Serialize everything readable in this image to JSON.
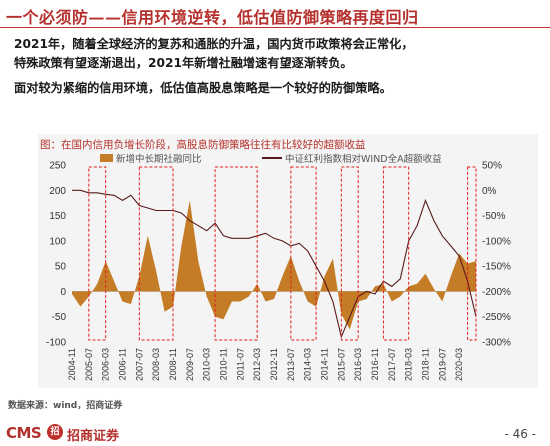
{
  "header": {
    "title": "一个必须防——信用环境逆转，低估值防御策略再度回归",
    "paragraph_lines": [
      "2021年，随着全球经济的复苏和通胀的升温，国内货币政策将会正常化，",
      "特殊政策有望逐渐退出，2021年新增社融增速有望逐渐转负。",
      "面对较为紧缩的信用环境，低估值高股息策略是一个较好的防御策略。"
    ]
  },
  "figure": {
    "caption": "图：在国内信用负增长阶段，高股息防御策略往往有比较好的超额收益",
    "source": "数据来源：wind，招商证券"
  },
  "footer": {
    "logo_text": "CMS",
    "logo_mark": "招",
    "company": "招商证券",
    "page_number": "- 46 -"
  },
  "colors": {
    "bar": "#c47c26",
    "line": "#5a1a1a",
    "highlight_box": "#e0201c",
    "title": "#b5302c"
  },
  "chart_data": {
    "type": "bar+line",
    "legend_position": "top",
    "series": [
      {
        "name": "新增中长期社融同比",
        "type": "area",
        "axis": "left",
        "x": [
          "2004-11",
          "2005-03",
          "2005-07",
          "2005-11",
          "2006-03",
          "2006-07",
          "2006-11",
          "2007-03",
          "2007-07",
          "2007-11",
          "2008-03",
          "2008-07",
          "2008-11",
          "2009-03",
          "2009-07",
          "2009-11",
          "2010-03",
          "2010-07",
          "2010-11",
          "2011-03",
          "2011-07",
          "2011-11",
          "2012-03",
          "2012-07",
          "2012-11",
          "2013-03",
          "2013-07",
          "2013-11",
          "2014-03",
          "2014-07",
          "2014-11",
          "2015-03",
          "2015-07",
          "2015-11",
          "2016-03",
          "2016-07",
          "2016-11",
          "2017-03",
          "2017-07",
          "2017-11",
          "2018-03",
          "2018-07",
          "2018-11",
          "2019-03",
          "2019-07",
          "2019-11",
          "2020-03",
          "2020-07",
          "2020-11"
        ],
        "values": [
          -5,
          -30,
          -10,
          15,
          60,
          20,
          -20,
          -25,
          30,
          110,
          40,
          -40,
          -30,
          90,
          180,
          60,
          -10,
          -50,
          -55,
          -20,
          -20,
          -10,
          15,
          -20,
          -15,
          30,
          70,
          20,
          -20,
          -30,
          30,
          65,
          -45,
          -75,
          -20,
          -15,
          10,
          15,
          -20,
          -10,
          10,
          15,
          35,
          5,
          -20,
          30,
          75,
          55,
          60
        ]
      },
      {
        "name": "中证红利指数相对WIND全A超额收益",
        "type": "line",
        "axis": "right",
        "x": [
          "2004-11",
          "2005-03",
          "2005-07",
          "2005-11",
          "2006-03",
          "2006-07",
          "2006-11",
          "2007-03",
          "2007-07",
          "2007-11",
          "2008-03",
          "2008-07",
          "2008-11",
          "2009-03",
          "2009-07",
          "2009-11",
          "2010-03",
          "2010-07",
          "2010-11",
          "2011-03",
          "2011-07",
          "2011-11",
          "2012-03",
          "2012-07",
          "2012-11",
          "2013-03",
          "2013-07",
          "2013-11",
          "2014-03",
          "2014-07",
          "2014-11",
          "2015-03",
          "2015-07",
          "2015-11",
          "2016-03",
          "2016-07",
          "2016-11",
          "2017-03",
          "2017-07",
          "2017-11",
          "2018-03",
          "2018-07",
          "2018-11",
          "2019-03",
          "2019-07",
          "2019-11",
          "2020-03",
          "2020-07",
          "2020-11"
        ],
        "values": [
          0,
          0,
          -5,
          -5,
          -8,
          -10,
          -20,
          -10,
          -30,
          -35,
          -40,
          -40,
          -40,
          -45,
          -60,
          -70,
          -80,
          -65,
          -90,
          -95,
          -95,
          -95,
          -90,
          -85,
          -95,
          -100,
          -110,
          -105,
          -120,
          -150,
          -180,
          -220,
          -290,
          -250,
          -210,
          -200,
          -205,
          -180,
          -190,
          -175,
          -100,
          -70,
          -20,
          -60,
          -90,
          -110,
          -130,
          -180,
          -250
        ]
      }
    ],
    "left_axis": {
      "min": -100,
      "max": 250,
      "ticks": [
        250,
        200,
        150,
        100,
        50,
        0,
        -50,
        -100
      ]
    },
    "right_axis": {
      "min": -300,
      "max": 50,
      "ticks": [
        "50%",
        "0%",
        "-50%",
        "-100%",
        "-150%",
        "-200%",
        "-250%",
        "-300%"
      ],
      "tick_values": [
        50,
        0,
        -50,
        -100,
        -150,
        -200,
        -250,
        -300
      ]
    },
    "x_tick_labels": [
      "2004-11",
      "2005-07",
      "2006-03",
      "2006-11",
      "2007-07",
      "2008-03",
      "2008-11",
      "2009-07",
      "2010-03",
      "2010-11",
      "2011-07",
      "2012-03",
      "2012-11",
      "2013-07",
      "2014-03",
      "2014-11",
      "2015-07",
      "2016-03",
      "2016-11",
      "2017-07",
      "2018-03",
      "2018-11",
      "2019-07",
      "2020-03"
    ],
    "highlight_periods": [
      {
        "start": "2005-07",
        "end": "2006-03"
      },
      {
        "start": "2007-07",
        "end": "2008-11"
      },
      {
        "start": "2010-07",
        "end": "2012-03"
      },
      {
        "start": "2013-07",
        "end": "2014-07"
      },
      {
        "start": "2015-07",
        "end": "2016-03"
      },
      {
        "start": "2017-03",
        "end": "2018-03"
      },
      {
        "start": "2020-07",
        "end": "2020-11"
      }
    ]
  }
}
